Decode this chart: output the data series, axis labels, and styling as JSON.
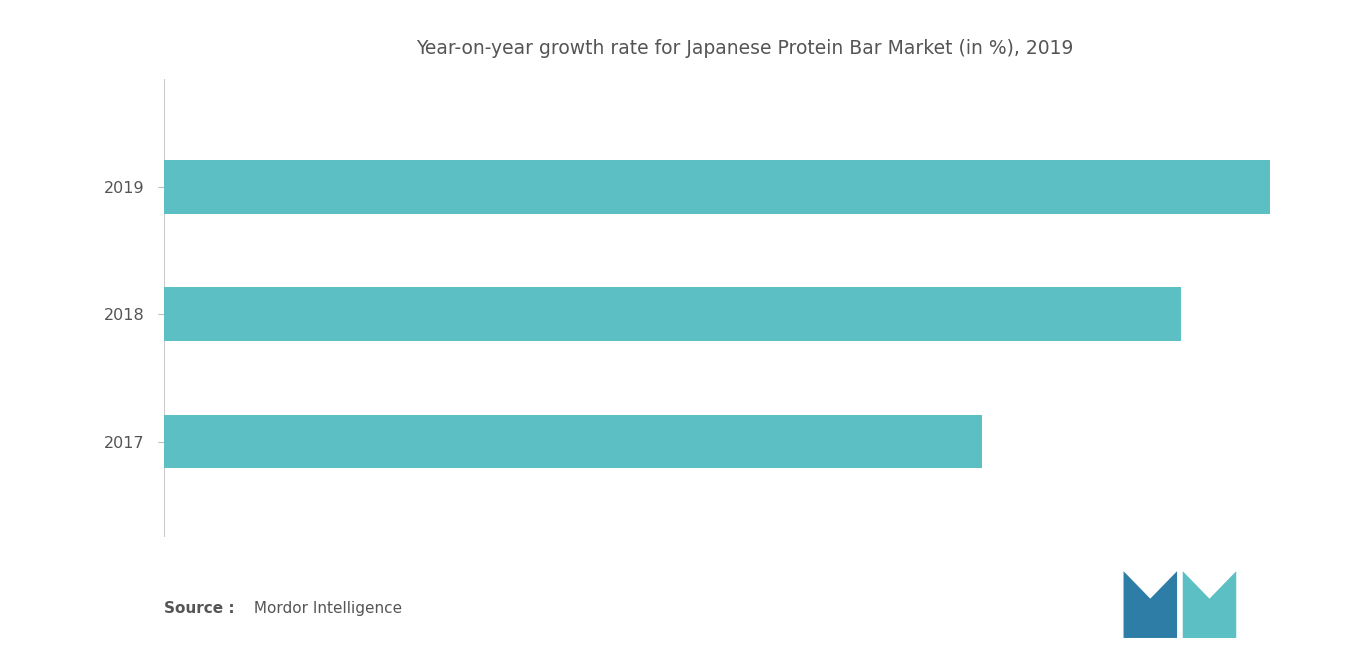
{
  "title": "Year-on-year growth rate for Japanese Protein Bar Market (in %), 2019",
  "categories": [
    "2019",
    "2018",
    "2017"
  ],
  "values": [
    100,
    92,
    74
  ],
  "bar_color": "#5BBFC4",
  "background_color": "#ffffff",
  "text_color": "#555555",
  "title_fontsize": 13.5,
  "tick_fontsize": 11.5,
  "source_bold": "Source :",
  "source_normal": " Mordor Intelligence",
  "xlim": [
    0,
    105
  ],
  "bar_height": 0.42,
  "logo_left_color": "#2e7da6",
  "logo_right_color": "#5BBFC4"
}
